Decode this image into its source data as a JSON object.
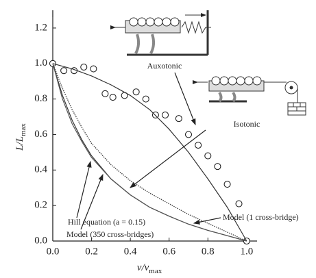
{
  "chart_data": {
    "type": "line",
    "xlabel": [
      "v/v",
      "max"
    ],
    "ylabel": [
      "L/L",
      "max"
    ],
    "xlim": [
      0,
      1.05
    ],
    "ylim": [
      0,
      1.3
    ],
    "xticks": [
      {
        "value": 0,
        "label": "0.0"
      },
      0.2,
      0.4,
      0.6,
      0.8,
      {
        "value": 1,
        "label": "1.0"
      }
    ],
    "yticks": [
      {
        "value": 0,
        "label": "0.0"
      },
      0.2,
      0.4,
      0.6,
      0.8,
      {
        "value": 1,
        "label": "1.0"
      },
      1.2
    ],
    "series": [
      {
        "style": "markers",
        "color": "#222222",
        "x": [
          0,
          0.057,
          0.11,
          0.16,
          0.21,
          0.27,
          0.31,
          0.37,
          0.43,
          0.48,
          0.53,
          0.58,
          0.65,
          0.7,
          0.75,
          0.8,
          0.85,
          0.9,
          0.96,
          1.0
        ],
        "values": [
          1.0,
          0.96,
          0.96,
          0.98,
          0.97,
          0.83,
          0.81,
          0.82,
          0.84,
          0.8,
          0.71,
          0.71,
          0.69,
          0.6,
          0.54,
          0.48,
          0.42,
          0.32,
          0.21,
          0
        ]
      },
      {
        "style": "solid",
        "color": "#333333",
        "x": [
          0,
          0.05,
          0.1,
          0.15,
          0.2,
          0.3,
          0.4,
          0.5,
          0.6,
          0.7,
          0.8,
          0.9,
          1.0
        ],
        "values": [
          1,
          0.985,
          0.97,
          0.95,
          0.93,
          0.88,
          0.82,
          0.74,
          0.63,
          0.5,
          0.35,
          0.19,
          0
        ]
      },
      {
        "style": "solid",
        "color": "#333333",
        "x": [
          0,
          0.05,
          0.1,
          0.15,
          0.2,
          0.3,
          0.4,
          0.5,
          0.6,
          0.7,
          0.8,
          0.9,
          1.0
        ],
        "values": [
          1,
          0.82,
          0.68,
          0.57,
          0.48,
          0.35,
          0.26,
          0.19,
          0.14,
          0.095,
          0.06,
          0.03,
          0
        ]
      },
      {
        "style": "solid",
        "color": "#555555",
        "x": [
          0,
          0.05,
          0.1,
          0.15,
          0.2,
          0.3,
          0.4,
          0.5,
          0.6,
          0.7,
          0.8,
          0.9,
          1.0
        ],
        "values": [
          1,
          0.8,
          0.66,
          0.56,
          0.47,
          0.35,
          0.26,
          0.19,
          0.14,
          0.095,
          0.06,
          0.03,
          0
        ]
      },
      {
        "style": "dotted",
        "color": "#444444",
        "x": [
          0,
          0.05,
          0.1,
          0.15,
          0.2,
          0.3,
          0.4,
          0.5,
          0.6,
          0.7,
          0.8,
          0.9,
          1.0
        ],
        "values": [
          1,
          0.86,
          0.74,
          0.64,
          0.55,
          0.43,
          0.34,
          0.27,
          0.21,
          0.15,
          0.1,
          0.05,
          0
        ]
      }
    ],
    "annotations": [
      "Auxotonic",
      "Isotonic",
      "Hill equation (a = 0.15)",
      "Model (350 cross-bridges)",
      "Model (1 cross-bridge)"
    ]
  }
}
